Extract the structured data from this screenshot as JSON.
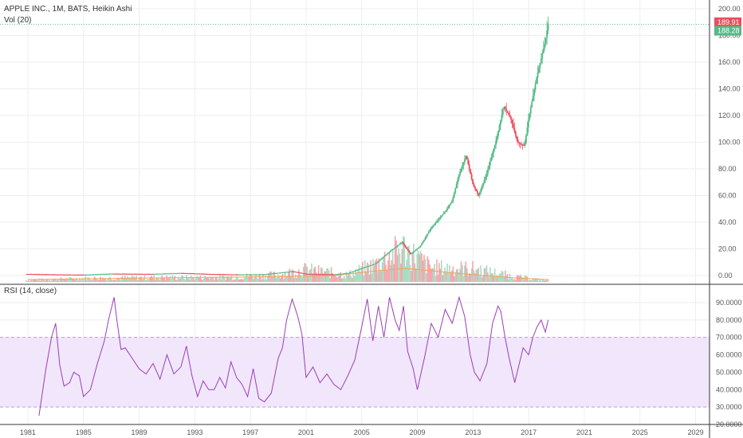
{
  "header": {
    "title": "APPLE INC., 1M, BATS, Heikin Ashi",
    "vol_label": "Vol (20)",
    "rsi_label": "RSI (14, close)"
  },
  "colors": {
    "up": "#53b987",
    "down": "#eb4d5c",
    "vol_up": "#a9dcc3",
    "vol_down": "#f5a6ae",
    "vol_ma": "#f0a35a",
    "rsi_line": "#9b3eb8",
    "rsi_band": "#f1e6fb",
    "grid": "#eeeeee",
    "last_line": "#53b987"
  },
  "price_tags": [
    {
      "value": "189.91",
      "color": "#eb4d5c"
    },
    {
      "value": "188.28",
      "color": "#53b987"
    }
  ],
  "chart_data": [
    {
      "type": "candlestick",
      "name": "price",
      "ylim": [
        -10,
        205
      ],
      "yticks": [
        "200.00",
        "180.00",
        "160.00",
        "140.00",
        "120.00",
        "100.00",
        "80.00",
        "60.00",
        "40.00",
        "20.00",
        "0.00"
      ],
      "xlim": [
        1979,
        2030
      ],
      "xticks": [
        "1981",
        "1985",
        "1989",
        "1993",
        "1997",
        "2001",
        "2005",
        "2009",
        "2013",
        "2017",
        "2021",
        "2025",
        "2029"
      ],
      "points": [
        [
          1980.9,
          1.2
        ],
        [
          1983,
          0.8
        ],
        [
          1985,
          0.6
        ],
        [
          1987,
          1.4
        ],
        [
          1990,
          1.2
        ],
        [
          1992,
          1.9
        ],
        [
          1994,
          1.2
        ],
        [
          1996,
          0.8
        ],
        [
          1998,
          0.9
        ],
        [
          2000,
          3.2
        ],
        [
          2001,
          1.2
        ],
        [
          2003,
          0.9
        ],
        [
          2004,
          1.8
        ],
        [
          2005,
          5.5
        ],
        [
          2006,
          9
        ],
        [
          2007,
          18
        ],
        [
          2007.9,
          25
        ],
        [
          2008.5,
          16
        ],
        [
          2009.2,
          22
        ],
        [
          2010,
          36
        ],
        [
          2011,
          48
        ],
        [
          2011.5,
          56
        ],
        [
          2012,
          76
        ],
        [
          2012.5,
          90
        ],
        [
          2013,
          68
        ],
        [
          2013.4,
          60
        ],
        [
          2014,
          77
        ],
        [
          2014.7,
          103
        ],
        [
          2015.2,
          127
        ],
        [
          2015.7,
          118
        ],
        [
          2016.2,
          100
        ],
        [
          2016.7,
          97
        ],
        [
          2017,
          118
        ],
        [
          2017.6,
          150
        ],
        [
          2018.2,
          176
        ],
        [
          2018.4,
          189
        ]
      ],
      "last_value": 188.28
    },
    {
      "type": "bar",
      "name": "volume",
      "note_levels": [
        [
          1981,
          2
        ],
        [
          1985,
          4
        ],
        [
          1990,
          5
        ],
        [
          1995,
          5
        ],
        [
          1999,
          8
        ],
        [
          2001,
          14
        ],
        [
          2004,
          8
        ],
        [
          2006,
          20
        ],
        [
          2008,
          38
        ],
        [
          2010,
          16
        ],
        [
          2013,
          15
        ],
        [
          2016,
          6
        ],
        [
          2018,
          2
        ]
      ],
      "ma_levels": [
        [
          1981,
          3
        ],
        [
          1990,
          5
        ],
        [
          1996,
          6
        ],
        [
          2000,
          7
        ],
        [
          2003,
          8
        ],
        [
          2005,
          12
        ],
        [
          2008,
          17
        ],
        [
          2010,
          14
        ],
        [
          2013,
          9
        ],
        [
          2016,
          5
        ],
        [
          2018.4,
          3
        ]
      ]
    },
    {
      "type": "line",
      "name": "RSI (14, close)",
      "ylim": [
        20,
        100
      ],
      "yticks": [
        "90.0000",
        "80.0000",
        "70.0000",
        "60.0000",
        "50.0000",
        "40.0000",
        "30.0000",
        "20.0000"
      ],
      "bands": [
        30,
        70
      ],
      "x": [
        1981.8,
        1982.3,
        1982.7,
        1983,
        1983.3,
        1983.6,
        1984,
        1984.3,
        1984.7,
        1985,
        1985.5,
        1986,
        1986.5,
        1986.8,
        1987.2,
        1987.4,
        1987.7,
        1988,
        1988.5,
        1989,
        1989.5,
        1990,
        1990.5,
        1991,
        1991.5,
        1992,
        1992.4,
        1992.8,
        1993.2,
        1993.6,
        1994,
        1994.4,
        1994.8,
        1995.2,
        1995.6,
        1996,
        1996.4,
        1996.8,
        1997.2,
        1997.6,
        1998,
        1998.5,
        1999,
        1999.3,
        1999.6,
        2000,
        2000.4,
        2000.7,
        2001,
        2001.5,
        2002,
        2002.5,
        2003,
        2003.5,
        2004,
        2004.5,
        2005,
        2005.4,
        2005.8,
        2006.2,
        2006.6,
        2007,
        2007.4,
        2007.7,
        2008,
        2008.3,
        2008.7,
        2009,
        2009.5,
        2010,
        2010.5,
        2011,
        2011.5,
        2012,
        2012.4,
        2012.8,
        2013.1,
        2013.5,
        2014,
        2014.4,
        2014.8,
        2015,
        2015.3,
        2015.6,
        2016,
        2016.3,
        2016.6,
        2017,
        2017.3,
        2017.6,
        2017.9,
        2018.2,
        2018.4
      ],
      "values": [
        25,
        52,
        70,
        78,
        54,
        42,
        44,
        50,
        48,
        36,
        40,
        55,
        68,
        80,
        93,
        80,
        63,
        64,
        58,
        52,
        49,
        55,
        46,
        60,
        49,
        53,
        65,
        48,
        36,
        45,
        40,
        40,
        47,
        41,
        56,
        47,
        43,
        36,
        52,
        35,
        33,
        38,
        58,
        64,
        80,
        92,
        82,
        72,
        47,
        53,
        44,
        49,
        43,
        40,
        48,
        57,
        76,
        92,
        68,
        88,
        70,
        93,
        80,
        74,
        88,
        62,
        52,
        40,
        58,
        78,
        70,
        86,
        78,
        93,
        82,
        60,
        50,
        45,
        55,
        78,
        88,
        85,
        70,
        58,
        44,
        54,
        64,
        60,
        70,
        76,
        80,
        73,
        80
      ]
    }
  ]
}
